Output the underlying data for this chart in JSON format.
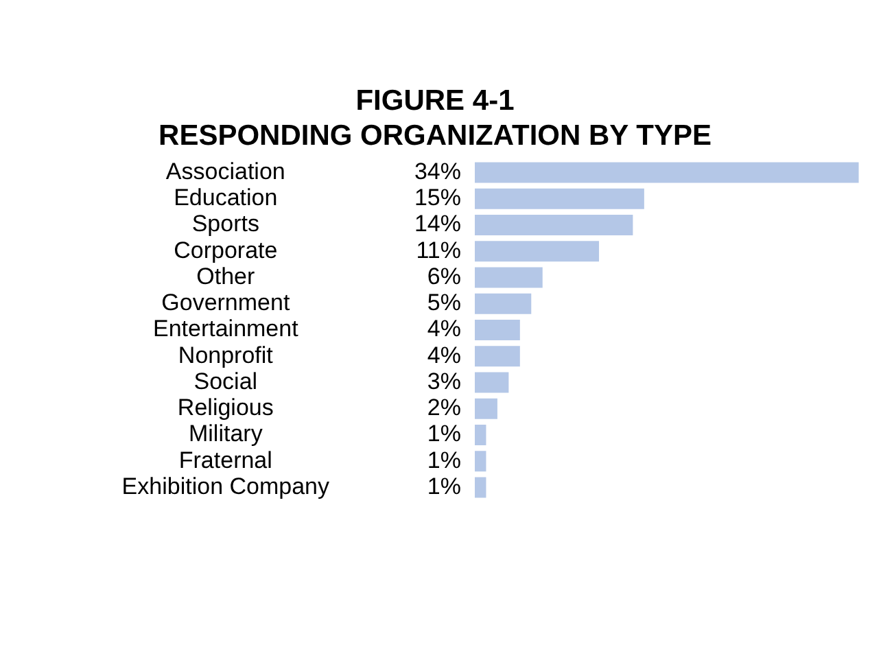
{
  "chart_data": {
    "type": "bar",
    "orientation": "horizontal",
    "title": "FIGURE 4-1",
    "subtitle": "RESPONDING ORGANIZATION BY TYPE",
    "categories": [
      "Association",
      "Education",
      "Sports",
      "Corporate",
      "Other",
      "Government",
      "Entertainment",
      "Nonprofit",
      "Social",
      "Religious",
      "Military",
      "Fraternal",
      "Exhibition Company"
    ],
    "values": [
      34,
      15,
      14,
      11,
      6,
      5,
      4,
      4,
      3,
      2,
      1,
      1,
      1
    ],
    "value_labels": [
      "34%",
      "15%",
      "14%",
      "11%",
      "6%",
      "5%",
      "4%",
      "4%",
      "3%",
      "2%",
      "1%",
      "1%",
      "1%"
    ],
    "color": "#b4c7e7",
    "grid": false,
    "legend": false
  }
}
